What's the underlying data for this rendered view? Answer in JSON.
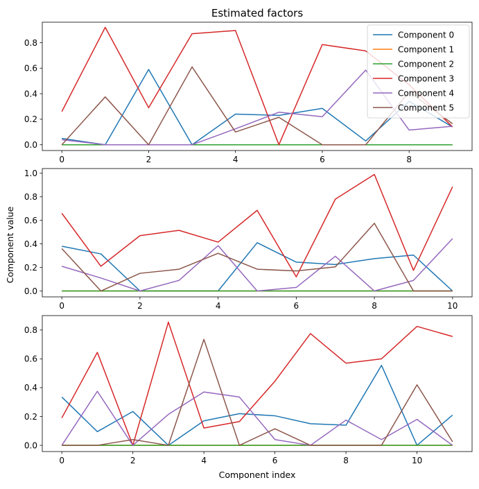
{
  "figure": {
    "title": "Estimated factors",
    "ylabel": "Component value",
    "xlabel": "Component index"
  },
  "chart_data": [
    {
      "type": "line",
      "title": "Estimated factors",
      "xlabel": "",
      "ylabel": "",
      "xlim": [
        -0.45,
        9.45
      ],
      "ylim": [
        -0.045,
        0.96
      ],
      "xticks": [
        0,
        2,
        4,
        6,
        8
      ],
      "yticks": [
        0.0,
        0.2,
        0.4,
        0.6,
        0.8
      ],
      "legend": "top-right",
      "grid": false,
      "x": [
        0,
        1,
        2,
        3,
        4,
        5,
        6,
        7,
        8,
        9
      ],
      "series": [
        {
          "name": "Component 0",
          "color": "#1f77b4",
          "values": [
            0.05,
            0.0,
            0.59,
            0.0,
            0.24,
            0.23,
            0.285,
            0.03,
            0.34,
            0.14
          ]
        },
        {
          "name": "Component 1",
          "color": "#ff7f0e",
          "values": [
            0.0,
            0.0,
            0.0,
            0.0,
            0.0,
            0.0,
            0.0,
            0.0,
            0.0,
            0.0
          ]
        },
        {
          "name": "Component 2",
          "color": "#2ca02c",
          "values": [
            0.0,
            0.0,
            0.0,
            0.0,
            0.0,
            0.0,
            0.0,
            0.0,
            0.0,
            0.0
          ]
        },
        {
          "name": "Component 3",
          "color": "#d62728",
          "values": [
            0.26,
            0.92,
            0.29,
            0.87,
            0.895,
            0.0,
            0.785,
            0.735,
            0.47,
            0.14
          ]
        },
        {
          "name": "Component 4",
          "color": "#9467bd",
          "values": [
            0.04,
            0.0,
            0.0,
            0.0,
            0.125,
            0.255,
            0.22,
            0.585,
            0.115,
            0.145
          ]
        },
        {
          "name": "Component 5",
          "color": "#8c564b",
          "values": [
            0.0,
            0.375,
            0.0,
            0.61,
            0.1,
            0.215,
            0.0,
            0.0,
            0.415,
            0.165
          ]
        }
      ]
    },
    {
      "type": "line",
      "xlabel": "",
      "ylabel": "Component value",
      "xlim": [
        -0.5,
        10.5
      ],
      "ylim": [
        -0.05,
        1.04
      ],
      "xticks": [
        0,
        2,
        4,
        6,
        8,
        10
      ],
      "yticks": [
        0.0,
        0.2,
        0.4,
        0.6,
        0.8,
        1.0
      ],
      "grid": false,
      "x": [
        0,
        1,
        2,
        3,
        4,
        5,
        6,
        7,
        8,
        9,
        10
      ],
      "series": [
        {
          "name": "Component 0",
          "color": "#1f77b4",
          "values": [
            0.38,
            0.315,
            0.0,
            0.0,
            0.0,
            0.41,
            0.245,
            0.225,
            0.275,
            0.305,
            0.0
          ]
        },
        {
          "name": "Component 1",
          "color": "#ff7f0e",
          "values": [
            0.0,
            0.0,
            0.0,
            0.0,
            0.0,
            0.0,
            0.0,
            0.0,
            0.0,
            0.0,
            0.0
          ]
        },
        {
          "name": "Component 2",
          "color": "#2ca02c",
          "values": [
            0.0,
            0.0,
            0.0,
            0.0,
            0.0,
            0.0,
            0.0,
            0.0,
            0.0,
            0.0,
            0.0
          ]
        },
        {
          "name": "Component 3",
          "color": "#d62728",
          "values": [
            0.66,
            0.21,
            0.47,
            0.515,
            0.415,
            0.685,
            0.12,
            0.78,
            0.99,
            0.175,
            0.885
          ]
        },
        {
          "name": "Component 4",
          "color": "#9467bd",
          "values": [
            0.21,
            0.11,
            0.0,
            0.09,
            0.385,
            0.0,
            0.03,
            0.295,
            0.0,
            0.09,
            0.445
          ]
        },
        {
          "name": "Component 5",
          "color": "#8c564b",
          "values": [
            0.36,
            0.0,
            0.15,
            0.185,
            0.32,
            0.185,
            0.17,
            0.205,
            0.575,
            0.0,
            0.0
          ]
        }
      ]
    },
    {
      "type": "line",
      "xlabel": "Component index",
      "ylabel": "",
      "xlim": [
        -0.55,
        11.55
      ],
      "ylim": [
        -0.043,
        0.9
      ],
      "xticks": [
        0,
        2,
        4,
        6,
        8,
        10
      ],
      "yticks": [
        0.0,
        0.2,
        0.4,
        0.6,
        0.8
      ],
      "grid": false,
      "x": [
        0,
        1,
        2,
        3,
        4,
        5,
        6,
        7,
        8,
        9,
        10,
        11
      ],
      "series": [
        {
          "name": "Component 0",
          "color": "#1f77b4",
          "values": [
            0.335,
            0.095,
            0.235,
            0.0,
            0.17,
            0.22,
            0.205,
            0.15,
            0.14,
            0.555,
            0.0,
            0.21
          ]
        },
        {
          "name": "Component 1",
          "color": "#ff7f0e",
          "values": [
            0.0,
            0.0,
            0.0,
            0.0,
            0.0,
            0.0,
            0.0,
            0.0,
            0.0,
            0.0,
            0.0,
            0.0
          ]
        },
        {
          "name": "Component 2",
          "color": "#2ca02c",
          "values": [
            0.0,
            0.0,
            0.0,
            0.0,
            0.0,
            0.0,
            0.0,
            0.0,
            0.0,
            0.0,
            0.0,
            0.0
          ]
        },
        {
          "name": "Component 3",
          "color": "#d62728",
          "values": [
            0.19,
            0.645,
            0.0,
            0.855,
            0.12,
            0.165,
            0.445,
            0.775,
            0.57,
            0.6,
            0.825,
            0.755
          ]
        },
        {
          "name": "Component 4",
          "color": "#9467bd",
          "values": [
            0.0,
            0.375,
            0.0,
            0.215,
            0.37,
            0.335,
            0.04,
            0.0,
            0.175,
            0.04,
            0.18,
            0.0
          ]
        },
        {
          "name": "Component 5",
          "color": "#8c564b",
          "values": [
            0.0,
            0.0,
            0.04,
            0.0,
            0.735,
            0.0,
            0.115,
            0.0,
            0.0,
            0.0,
            0.42,
            0.025
          ]
        }
      ]
    }
  ]
}
